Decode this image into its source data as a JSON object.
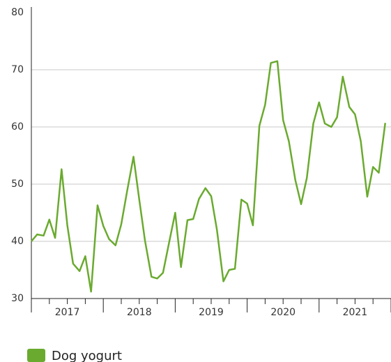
{
  "chart_data": {
    "type": "line",
    "x": [
      2017,
      2017.08,
      2017.17,
      2017.25,
      2017.33,
      2017.42,
      2017.5,
      2017.58,
      2017.67,
      2017.75,
      2017.83,
      2017.92,
      2018,
      2018.08,
      2018.17,
      2018.25,
      2018.33,
      2018.42,
      2018.5,
      2018.58,
      2018.67,
      2018.75,
      2018.83,
      2018.92,
      2019,
      2019.08,
      2019.17,
      2019.25,
      2019.33,
      2019.42,
      2019.5,
      2019.58,
      2019.67,
      2019.75,
      2019.83,
      2019.92,
      2020,
      2020.08,
      2020.17,
      2020.25,
      2020.33,
      2020.42,
      2020.5,
      2020.58,
      2020.67,
      2020.75,
      2020.83,
      2020.92,
      2021,
      2021.08,
      2021.17,
      2021.25,
      2021.33,
      2021.42,
      2021.5,
      2021.58,
      2021.67,
      2021.75,
      2021.83,
      2021.92
    ],
    "series": [
      {
        "name": "Dog yogurt",
        "color": "#6aaa2f",
        "values": [
          40,
          41.2,
          41,
          43.8,
          40.6,
          52.6,
          42.8,
          36.1,
          34.8,
          37.4,
          31.2,
          46.3,
          42.7,
          40.4,
          39.3,
          43,
          48.7,
          54.8,
          47.3,
          40.1,
          33.8,
          33.5,
          34.5,
          40.1,
          45,
          35.5,
          43.7,
          43.9,
          47.4,
          49.3,
          47.9,
          42,
          33,
          35,
          35.2,
          47.3,
          46.6,
          42.8,
          60.2,
          63.9,
          71.2,
          71.5,
          61.2,
          57.5,
          50.7,
          46.5,
          51.1,
          60.6,
          64.3,
          60.6,
          60,
          61.7,
          68.8,
          63.5,
          62.2,
          57.5,
          47.8,
          53,
          52,
          60.7
        ]
      }
    ],
    "xlim": [
      2017,
      2022
    ],
    "xticks": [
      {
        "value": 2017.5,
        "label": "2017"
      },
      {
        "value": 2018.5,
        "label": "2018"
      },
      {
        "value": 2019.5,
        "label": "2019"
      },
      {
        "value": 2020.5,
        "label": "2020"
      },
      {
        "value": 2021.5,
        "label": "2021"
      }
    ],
    "ylim": [
      30,
      80
    ],
    "yticks": [
      30,
      40,
      50,
      60,
      70,
      80
    ],
    "grid": true
  }
}
